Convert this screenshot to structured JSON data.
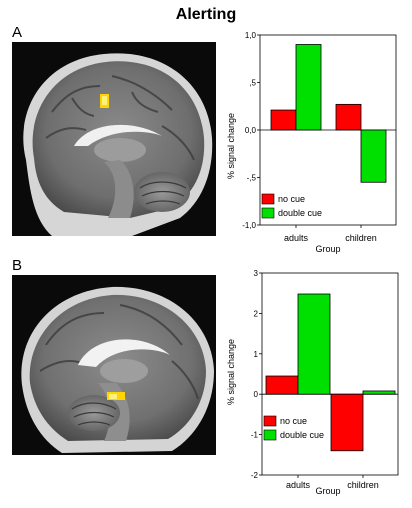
{
  "figure": {
    "title": "Alerting"
  },
  "panels": [
    {
      "label": "A"
    },
    {
      "label": "B"
    }
  ],
  "colors": {
    "no_cue": "#ff0000",
    "double_cue": "#00e000",
    "activation": "#ffd400"
  },
  "chart_data": [
    {
      "type": "bar",
      "categories": [
        "adults",
        "children"
      ],
      "series": [
        {
          "name": "no cue",
          "values": [
            0.21,
            0.27
          ]
        },
        {
          "name": "double cue",
          "values": [
            0.9,
            -0.55
          ]
        }
      ],
      "ylim": [
        -1.0,
        1.0
      ],
      "yticks": [
        -1.0,
        -0.5,
        0,
        0.5,
        1.0
      ],
      "ytick_labels": [
        "-1,0",
        "-,5",
        "0,0",
        ",5",
        "1,0"
      ],
      "xlabel": "Group",
      "ylabel": "% signal change",
      "legend_position": "bottom-left",
      "grid": false
    },
    {
      "type": "bar",
      "categories": [
        "adults",
        "children"
      ],
      "series": [
        {
          "name": "no cue",
          "values": [
            0.45,
            -1.4
          ]
        },
        {
          "name": "double cue",
          "values": [
            2.48,
            0.08
          ]
        }
      ],
      "ylim": [
        -2,
        3
      ],
      "yticks": [
        -2,
        -1,
        0,
        1,
        2,
        3
      ],
      "ytick_labels": [
        "-2",
        "-1",
        "0",
        "1",
        "2",
        "3"
      ],
      "xlabel": "Group",
      "ylabel": "% signal change",
      "legend_position": "bottom-left",
      "grid": false
    }
  ]
}
